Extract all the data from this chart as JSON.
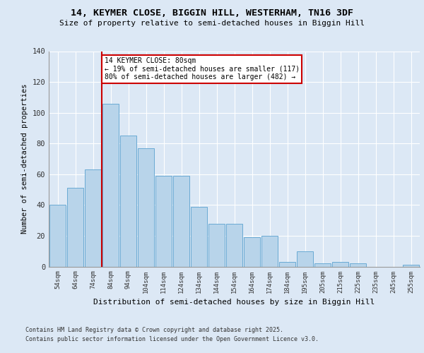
{
  "title1": "14, KEYMER CLOSE, BIGGIN HILL, WESTERHAM, TN16 3DF",
  "title2": "Size of property relative to semi-detached houses in Biggin Hill",
  "xlabel": "Distribution of semi-detached houses by size in Biggin Hill",
  "ylabel": "Number of semi-detached properties",
  "categories": [
    "54sqm",
    "64sqm",
    "74sqm",
    "84sqm",
    "94sqm",
    "104sqm",
    "114sqm",
    "124sqm",
    "134sqm",
    "144sqm",
    "154sqm",
    "164sqm",
    "174sqm",
    "184sqm",
    "195sqm",
    "205sqm",
    "215sqm",
    "225sqm",
    "235sqm",
    "245sqm",
    "255sqm"
  ],
  "values": [
    40,
    51,
    63,
    106,
    85,
    77,
    59,
    59,
    39,
    28,
    28,
    19,
    20,
    3,
    10,
    2,
    3,
    2,
    0,
    0,
    1
  ],
  "bar_color": "#b8d4ea",
  "bar_edge_color": "#6aaad4",
  "vline_color": "#cc0000",
  "annotation_text": "14 KEYMER CLOSE: 80sqm\n← 19% of semi-detached houses are smaller (117)\n80% of semi-detached houses are larger (482) →",
  "annotation_box_color": "#cc0000",
  "ylim": [
    0,
    140
  ],
  "yticks": [
    0,
    20,
    40,
    60,
    80,
    100,
    120,
    140
  ],
  "footnote1": "Contains HM Land Registry data © Crown copyright and database right 2025.",
  "footnote2": "Contains public sector information licensed under the Open Government Licence v3.0.",
  "bg_color": "#dce8f5",
  "plot_bg_color": "#dce8f5"
}
